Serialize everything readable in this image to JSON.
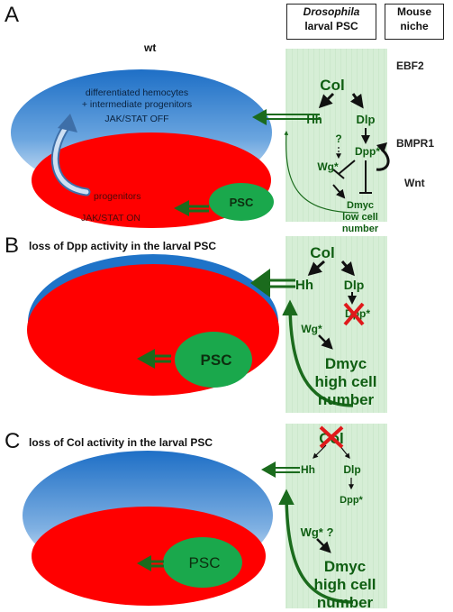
{
  "panels": [
    {
      "letter": "A",
      "title": "wt"
    },
    {
      "letter": "B",
      "title": "loss of Dpp activity in the larval PSC"
    },
    {
      "letter": "C",
      "title": "loss of Col activity  in the larval PSC"
    }
  ],
  "headers": {
    "drosophila_line1": "Drosophila",
    "drosophila_line2": "larval PSC",
    "mouse_line1": "Mouse",
    "mouse_line2": "niche"
  },
  "mouse_niche_factors": [
    "EBF2",
    "BMPR1",
    "Wnt"
  ],
  "wt_labels": {
    "hemocytes_line1": "differentiated hemocytes",
    "hemocytes_line2": "+ intermediate progenitors",
    "jakstat_off": "JAK/STAT OFF",
    "progenitors": "progenitors",
    "jakstat_on": "JAK/STAT ON"
  },
  "psc_label": "PSC",
  "network_a": {
    "col": "Col",
    "hh": "Hh",
    "dlp": "Dlp",
    "dpp": "Dpp*",
    "q": "?",
    "wg": "Wg*",
    "dmyc": "Dmyc",
    "low1": "low cell",
    "low2": "number"
  },
  "network_b": {
    "col": "Col",
    "hh": "Hh",
    "dlp": "Dlp",
    "dpp": "Dpp*",
    "wg": "Wg*",
    "dmyc": "Dmyc",
    "high1": "high cell",
    "high2": "number"
  },
  "network_c": {
    "col": "Col",
    "hh": "Hh",
    "dlp": "Dlp",
    "dpp": "Dpp*",
    "wg": "Wg* ?",
    "dmyc": "Dmyc",
    "high1": "high cell",
    "high2": "number"
  },
  "colors": {
    "niche_green": "#d4ecd4",
    "psc_green": "#19a54b",
    "progenitor_red": "#ff0000",
    "hemocyte_blue": "#1f73c8",
    "arrow_green": "#1b6b1d",
    "cross_red": "#e0191b"
  }
}
